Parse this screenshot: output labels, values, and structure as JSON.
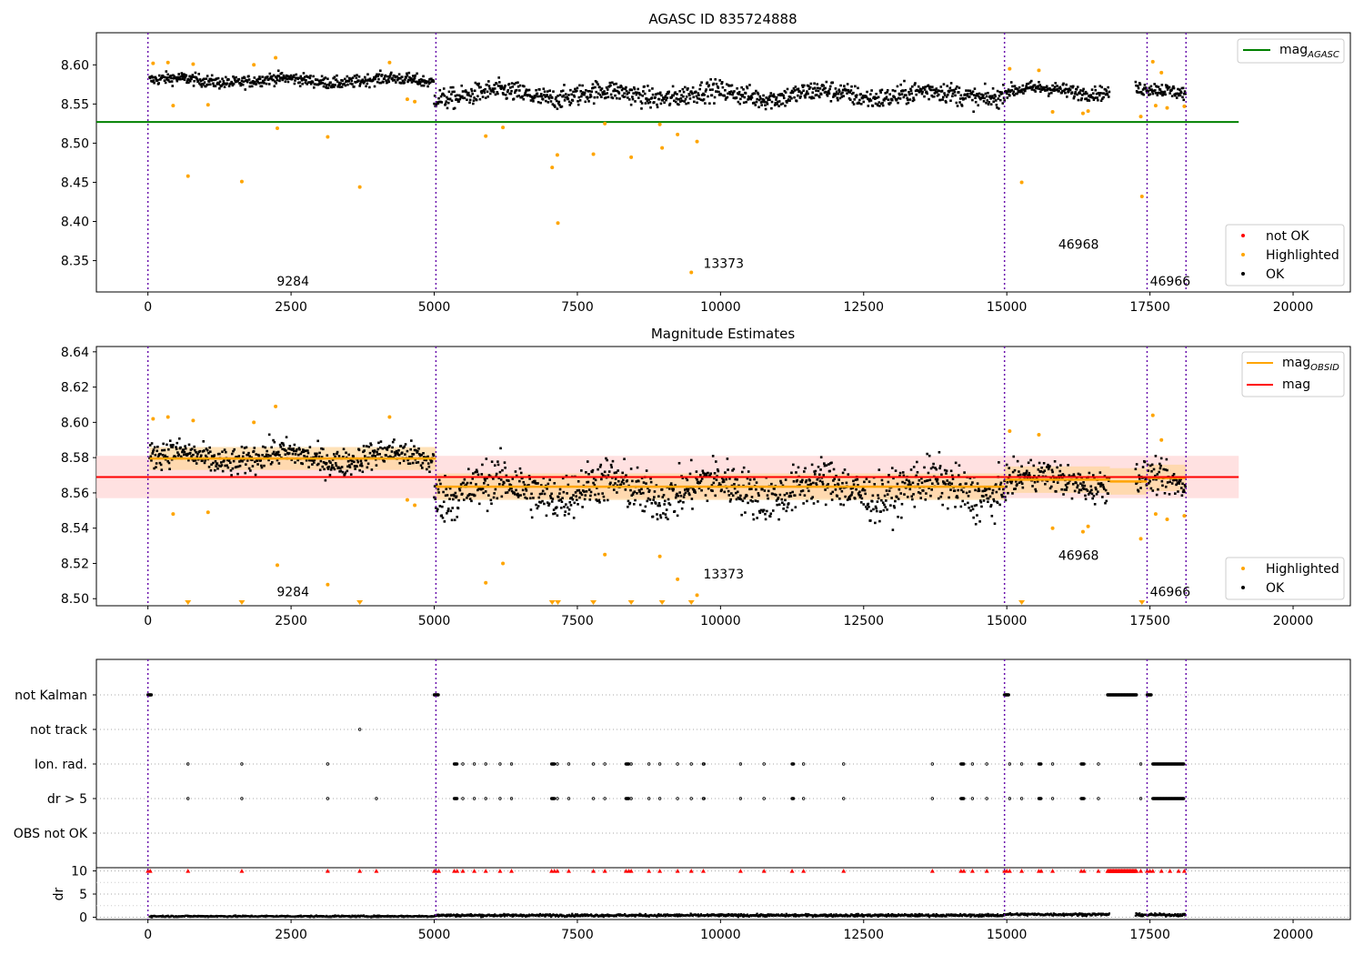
{
  "chart_data": [
    {
      "type": "scatter",
      "title": "AGASC ID 835724888",
      "xlim": [
        -900,
        21000
      ],
      "ylim": [
        8.31,
        8.641
      ],
      "xticks": [
        0,
        2500,
        5000,
        7500,
        10000,
        12500,
        15000,
        17500,
        20000
      ],
      "xtick_labels": [
        "0",
        "2500",
        "5000",
        "7500",
        "10000",
        "12500",
        "15000",
        "17500",
        "20000"
      ],
      "yticks": [
        8.35,
        8.4,
        8.45,
        8.5,
        8.55,
        8.6
      ],
      "ytick_labels": [
        "8.35",
        "8.40",
        "8.45",
        "8.50",
        "8.55",
        "8.60"
      ],
      "obsid_boundaries": [
        0,
        5030,
        14960,
        17450,
        18130
      ],
      "segment_labels": [
        {
          "text": "9284",
          "x": 2250,
          "y": 8.318
        },
        {
          "text": "13373",
          "x": 9700,
          "y": 8.341
        },
        {
          "text": "46968",
          "x": 15900,
          "y": 8.365
        },
        {
          "text": "46966",
          "x": 17500,
          "y": 8.318
        }
      ],
      "lines": [
        {
          "name": "mag_AGASC",
          "y": 8.527,
          "x": [
            -900,
            19050
          ],
          "color": "#008000"
        }
      ],
      "clusters": [
        {
          "x": [
            30,
            5000
          ],
          "mean": 8.58,
          "spread": 0.007
        },
        {
          "x": [
            5000,
            14950
          ],
          "mean": 8.562,
          "spread": 0.012
        },
        {
          "x": [
            14950,
            16800
          ],
          "mean": 8.567,
          "spread": 0.008
        },
        {
          "x": [
            17250,
            18130
          ],
          "mean": 8.566,
          "spread": 0.008
        }
      ],
      "highlighted": [
        [
          90,
          8.602
        ],
        [
          350,
          8.603
        ],
        [
          440,
          8.548
        ],
        [
          700,
          8.458
        ],
        [
          790,
          8.601
        ],
        [
          1050,
          8.549
        ],
        [
          1640,
          8.451
        ],
        [
          1850,
          8.6
        ],
        [
          2230,
          8.609
        ],
        [
          2260,
          8.519
        ],
        [
          3140,
          8.508
        ],
        [
          3700,
          8.444
        ],
        [
          4220,
          8.603
        ],
        [
          4530,
          8.556
        ],
        [
          4660,
          8.553
        ],
        [
          5900,
          8.509
        ],
        [
          6200,
          8.52
        ],
        [
          7060,
          8.469
        ],
        [
          7150,
          8.485
        ],
        [
          7160,
          8.398
        ],
        [
          7780,
          8.486
        ],
        [
          7980,
          8.525
        ],
        [
          8440,
          8.482
        ],
        [
          8940,
          8.524
        ],
        [
          8980,
          8.494
        ],
        [
          9250,
          8.511
        ],
        [
          9490,
          8.335
        ],
        [
          9590,
          8.502
        ],
        [
          15050,
          8.595
        ],
        [
          15260,
          8.45
        ],
        [
          15560,
          8.593
        ],
        [
          15800,
          8.54
        ],
        [
          16330,
          8.538
        ],
        [
          16420,
          8.541
        ],
        [
          17340,
          8.534
        ],
        [
          17360,
          8.432
        ],
        [
          17550,
          8.604
        ],
        [
          17600,
          8.548
        ],
        [
          17700,
          8.59
        ],
        [
          17800,
          8.545
        ],
        [
          18100,
          8.547
        ]
      ],
      "legend": {
        "lines": [
          {
            "label": "mag",
            "subscript": "AGASC",
            "color": "#008000"
          }
        ],
        "markers": [
          {
            "label": "not OK",
            "color": "#ff0000"
          },
          {
            "label": "Highlighted",
            "color": "#ffa500"
          },
          {
            "label": "OK",
            "color": "#000000"
          }
        ]
      }
    },
    {
      "type": "scatter",
      "title": "Magnitude Estimates",
      "xlim": [
        -900,
        21000
      ],
      "ylim": [
        8.496,
        8.643
      ],
      "xticks": [
        0,
        2500,
        5000,
        7500,
        10000,
        12500,
        15000,
        17500,
        20000
      ],
      "xtick_labels": [
        "0",
        "2500",
        "5000",
        "7500",
        "10000",
        "12500",
        "15000",
        "17500",
        "20000"
      ],
      "yticks": [
        8.5,
        8.52,
        8.54,
        8.56,
        8.58,
        8.6,
        8.62,
        8.64
      ],
      "ytick_labels": [
        "8.50",
        "8.52",
        "8.54",
        "8.56",
        "8.58",
        "8.60",
        "8.62",
        "8.64"
      ],
      "obsid_boundaries": [
        0,
        5030,
        14960,
        17450,
        18130
      ],
      "segment_labels": [
        {
          "text": "9284",
          "x": 2250,
          "y": 8.5015
        },
        {
          "text": "13373",
          "x": 9700,
          "y": 8.5115
        },
        {
          "text": "46968",
          "x": 15900,
          "y": 8.522
        },
        {
          "text": "46966",
          "x": 17500,
          "y": 8.5015
        }
      ],
      "mag": {
        "value": 8.569,
        "band": [
          8.557,
          8.581
        ],
        "x": [
          -900,
          19050
        ],
        "color": "#ff0000",
        "band_color": "#ffd9d9"
      },
      "mag_obsid": [
        {
          "x": [
            30,
            5030
          ],
          "value": 8.5795,
          "band": [
            8.573,
            8.586
          ]
        },
        {
          "x": [
            5030,
            14960
          ],
          "value": 8.5635,
          "band": [
            8.556,
            8.571
          ]
        },
        {
          "x": [
            14960,
            16800
          ],
          "value": 8.5675,
          "band": [
            8.56,
            8.575
          ]
        },
        {
          "x": [
            16800,
            17450
          ],
          "value": 8.5665,
          "band": [
            8.559,
            8.574
          ]
        },
        {
          "x": [
            17450,
            18130
          ],
          "value": 8.5685,
          "band": [
            8.561,
            8.576
          ]
        }
      ],
      "clusters": [
        {
          "x": [
            30,
            5000
          ],
          "mean": 8.58,
          "spread": 0.007
        },
        {
          "x": [
            5000,
            14950
          ],
          "mean": 8.562,
          "spread": 0.012
        },
        {
          "x": [
            14950,
            16800
          ],
          "mean": 8.567,
          "spread": 0.008
        },
        {
          "x": [
            17250,
            18130
          ],
          "mean": 8.566,
          "spread": 0.008
        }
      ],
      "highlighted": [
        [
          90,
          8.602
        ],
        [
          350,
          8.603
        ],
        [
          440,
          8.548
        ],
        [
          790,
          8.601
        ],
        [
          1050,
          8.549
        ],
        [
          1850,
          8.6
        ],
        [
          2230,
          8.609
        ],
        [
          2260,
          8.519
        ],
        [
          3140,
          8.508
        ],
        [
          4220,
          8.603
        ],
        [
          4530,
          8.556
        ],
        [
          4660,
          8.553
        ],
        [
          5900,
          8.509
        ],
        [
          6200,
          8.52
        ],
        [
          7980,
          8.525
        ],
        [
          8940,
          8.524
        ],
        [
          9250,
          8.511
        ],
        [
          9590,
          8.502
        ],
        [
          15050,
          8.595
        ],
        [
          15560,
          8.593
        ],
        [
          15800,
          8.54
        ],
        [
          16330,
          8.538
        ],
        [
          16420,
          8.541
        ],
        [
          17340,
          8.534
        ],
        [
          17550,
          8.604
        ],
        [
          17600,
          8.548
        ],
        [
          17700,
          8.59
        ],
        [
          17800,
          8.545
        ],
        [
          18100,
          8.547
        ]
      ],
      "below_range": [
        700,
        1640,
        3700,
        7060,
        7160,
        7780,
        8440,
        8980,
        9490,
        15260,
        17360
      ],
      "legend": {
        "lines": [
          {
            "label": "mag",
            "subscript": "OBSID",
            "color": "#ffa500"
          },
          {
            "label": "mag",
            "subscript": "",
            "color": "#ff0000"
          }
        ],
        "markers": [
          {
            "label": "Highlighted",
            "color": "#ffa500"
          },
          {
            "label": "OK",
            "color": "#000000"
          }
        ]
      }
    },
    {
      "type": "scatter",
      "xlim": [
        -900,
        21000
      ],
      "categories": [
        "not Kalman",
        "not track",
        "Ion. rad.",
        "dr > 5",
        "OBS not OK"
      ],
      "obsid_boundaries": [
        0,
        5030,
        14960,
        17450,
        18130
      ],
      "flags": {
        "not Kalman": [
          [
            0,
            60
          ],
          [
            5000,
            5080
          ],
          [
            14960,
            15040
          ],
          [
            16760,
            17270
          ],
          [
            17450,
            17530
          ]
        ],
        "not track": [
          [
            3700,
            3710
          ]
        ],
        "Ion. rad.": [
          [
            700,
            700
          ],
          [
            1640,
            1640
          ],
          [
            3140,
            3140
          ],
          [
            5350,
            5400
          ],
          [
            5500,
            5500
          ],
          [
            5700,
            5700
          ],
          [
            5900,
            5900
          ],
          [
            6150,
            6150
          ],
          [
            6350,
            6350
          ],
          [
            7050,
            7100
          ],
          [
            7150,
            7150
          ],
          [
            7350,
            7350
          ],
          [
            7780,
            7780
          ],
          [
            7980,
            7980
          ],
          [
            8350,
            8400
          ],
          [
            8440,
            8440
          ],
          [
            8750,
            8750
          ],
          [
            8940,
            8940
          ],
          [
            9250,
            9250
          ],
          [
            9490,
            9490
          ],
          [
            9700,
            9720
          ],
          [
            10350,
            10350
          ],
          [
            10760,
            10760
          ],
          [
            11250,
            11280
          ],
          [
            11450,
            11450
          ],
          [
            12150,
            12150
          ],
          [
            13700,
            13700
          ],
          [
            14200,
            14250
          ],
          [
            14400,
            14400
          ],
          [
            14650,
            14650
          ],
          [
            15050,
            15050
          ],
          [
            15260,
            15260
          ],
          [
            15560,
            15600
          ],
          [
            15800,
            15800
          ],
          [
            16300,
            16350
          ],
          [
            16600,
            16600
          ],
          [
            17340,
            17340
          ],
          [
            17550,
            18100
          ]
        ],
        "dr > 5": [
          [
            700,
            700
          ],
          [
            1640,
            1640
          ],
          [
            3140,
            3140
          ],
          [
            3990,
            3990
          ],
          [
            5350,
            5400
          ],
          [
            5500,
            5500
          ],
          [
            5700,
            5700
          ],
          [
            5900,
            5900
          ],
          [
            6150,
            6150
          ],
          [
            6350,
            6350
          ],
          [
            7050,
            7100
          ],
          [
            7150,
            7150
          ],
          [
            7350,
            7350
          ],
          [
            7780,
            7780
          ],
          [
            7980,
            7980
          ],
          [
            8350,
            8400
          ],
          [
            8440,
            8440
          ],
          [
            8750,
            8750
          ],
          [
            8940,
            8940
          ],
          [
            9250,
            9250
          ],
          [
            9490,
            9490
          ],
          [
            9700,
            9720
          ],
          [
            10350,
            10350
          ],
          [
            10760,
            10760
          ],
          [
            11250,
            11280
          ],
          [
            11450,
            11450
          ],
          [
            12150,
            12150
          ],
          [
            13700,
            13700
          ],
          [
            14200,
            14250
          ],
          [
            14400,
            14400
          ],
          [
            14650,
            14650
          ],
          [
            15050,
            15050
          ],
          [
            15260,
            15260
          ],
          [
            15560,
            15600
          ],
          [
            15800,
            15800
          ],
          [
            16300,
            16350
          ],
          [
            16600,
            16600
          ],
          [
            17340,
            17340
          ],
          [
            17550,
            18100
          ]
        ],
        "OBS not OK": []
      },
      "dr": {
        "ylabel": "dr",
        "ylim": [
          -0.5,
          10.7
        ],
        "yticks": [
          0,
          5,
          10
        ],
        "ytick_labels": [
          "0",
          "5",
          "10"
        ],
        "minor_ticks": [
          2.5,
          7.5
        ],
        "capped_value": 10,
        "capped_x": [
          0,
          40,
          700,
          1640,
          3140,
          3700,
          3990,
          5000,
          5030,
          5080,
          5350,
          5400,
          5500,
          5700,
          5900,
          6150,
          6350,
          7050,
          7100,
          7150,
          7350,
          7780,
          7980,
          8350,
          8400,
          8440,
          8750,
          8940,
          9250,
          9490,
          9700,
          10350,
          10760,
          11250,
          11450,
          12150,
          13700,
          14200,
          14250,
          14400,
          14650,
          14960,
          15000,
          15050,
          15260,
          15560,
          15600,
          15800,
          16300,
          16350,
          16600,
          17340,
          17450,
          17500,
          17550,
          17700,
          17850,
          18000,
          18100
        ],
        "capped_ranges": [
          [
            16760,
            17270
          ]
        ],
        "clusters": [
          {
            "x": [
              30,
              5000
            ],
            "mean": 0.2,
            "spread": 0.15
          },
          {
            "x": [
              5000,
              14950
            ],
            "mean": 0.4,
            "spread": 0.25
          },
          {
            "x": [
              14950,
              16800
            ],
            "mean": 0.6,
            "spread": 0.25
          },
          {
            "x": [
              17250,
              18130
            ],
            "mean": 0.5,
            "spread": 0.25
          }
        ]
      }
    }
  ]
}
